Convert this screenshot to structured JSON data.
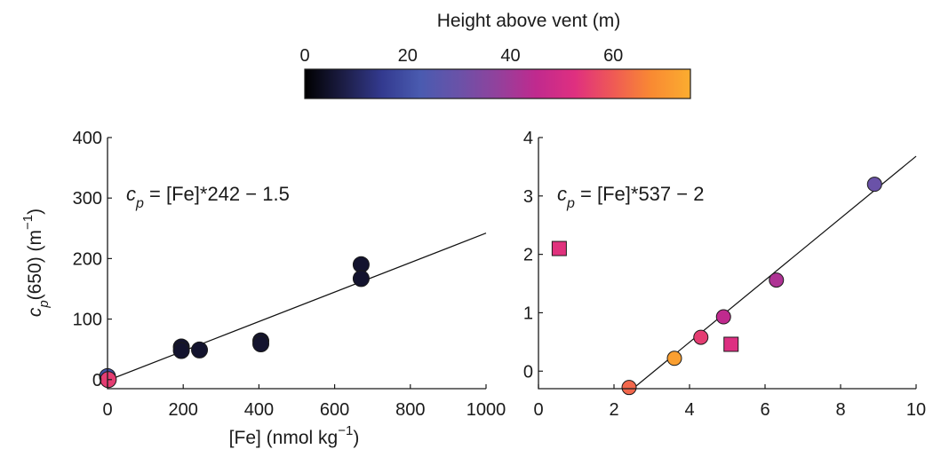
{
  "colorbar": {
    "label": "Height above vent (m)",
    "min": 0,
    "max": 75,
    "ticks": [
      0,
      20,
      40,
      60
    ],
    "tick_labels": [
      "0",
      "20",
      "40",
      "60"
    ],
    "colormap": [
      "#000000",
      "#1c1d45",
      "#333a8f",
      "#4a5bb0",
      "#6a52a8",
      "#92419c",
      "#c02a8e",
      "#df2f80",
      "#ef5a55",
      "#f98a32",
      "#fbad30"
    ]
  },
  "chart_data": [
    {
      "type": "scatter",
      "title": "",
      "xlabel_main": "[Fe] (nmol kg",
      "xlabel_sup": "−1",
      "xlabel_end": ")",
      "ylabel_c": "c",
      "ylabel_sub": "p",
      "ylabel_rest": "(650) (m",
      "ylabel_sup": "−1",
      "ylabel_end": ")",
      "xlim": [
        0,
        1000
      ],
      "ylim": [
        -15,
        400
      ],
      "xticks": [
        0,
        200,
        400,
        600,
        800,
        1000
      ],
      "xtick_labels": [
        "0",
        "200",
        "400",
        "600",
        "800",
        "1000"
      ],
      "yticks": [
        0,
        100,
        200,
        300,
        400
      ],
      "ytick_labels": [
        "0",
        "100",
        "200",
        "300",
        "400"
      ],
      "equation": {
        "c": "c",
        "sub": "p",
        "rest": " = [Fe]*242 − 1.5"
      },
      "fit": {
        "x": [
          0,
          1000
        ],
        "y": [
          -1.5,
          242
        ]
      },
      "points": [
        {
          "x": 0,
          "y": 5,
          "h": 20,
          "marker": "circle"
        },
        {
          "x": 2,
          "y": 0,
          "h": 55,
          "marker": "circle"
        },
        {
          "x": 195,
          "y": 54,
          "h": 5,
          "marker": "circle"
        },
        {
          "x": 195,
          "y": 48,
          "h": 5,
          "marker": "circle"
        },
        {
          "x": 243,
          "y": 49,
          "h": 5,
          "marker": "circle"
        },
        {
          "x": 405,
          "y": 64,
          "h": 5,
          "marker": "circle"
        },
        {
          "x": 405,
          "y": 59,
          "h": 5,
          "marker": "circle"
        },
        {
          "x": 670,
          "y": 190,
          "h": 5,
          "marker": "circle"
        },
        {
          "x": 670,
          "y": 167,
          "h": 5,
          "marker": "circle"
        }
      ]
    },
    {
      "type": "scatter",
      "title": "",
      "xlim": [
        0,
        10
      ],
      "ylim": [
        -0.3,
        4
      ],
      "xticks": [
        0,
        2,
        4,
        6,
        8,
        10
      ],
      "xtick_labels": [
        "0",
        "2",
        "4",
        "6",
        "8",
        "10"
      ],
      "yticks": [
        0,
        1,
        2,
        3,
        4
      ],
      "ytick_labels": [
        "0",
        "1",
        "2",
        "3",
        "4"
      ],
      "equation": {
        "c": "c",
        "sub": "p",
        "rest": " = [Fe]*537 − 2"
      },
      "fit": {
        "x": [
          2.5,
          10
        ],
        "y": [
          -0.3,
          3.68
        ]
      },
      "points": [
        {
          "x": 2.4,
          "y": -0.28,
          "h": 62,
          "marker": "circle"
        },
        {
          "x": 3.6,
          "y": 0.22,
          "h": 72,
          "marker": "circle"
        },
        {
          "x": 4.3,
          "y": 0.58,
          "h": 55,
          "marker": "circle"
        },
        {
          "x": 4.9,
          "y": 0.93,
          "h": 45,
          "marker": "circle"
        },
        {
          "x": 6.3,
          "y": 1.56,
          "h": 42,
          "marker": "circle"
        },
        {
          "x": 8.9,
          "y": 3.2,
          "h": 30,
          "marker": "circle"
        },
        {
          "x": 0.55,
          "y": 2.1,
          "h": 53,
          "marker": "square"
        },
        {
          "x": 5.1,
          "y": 0.46,
          "h": 52,
          "marker": "square"
        }
      ]
    }
  ]
}
